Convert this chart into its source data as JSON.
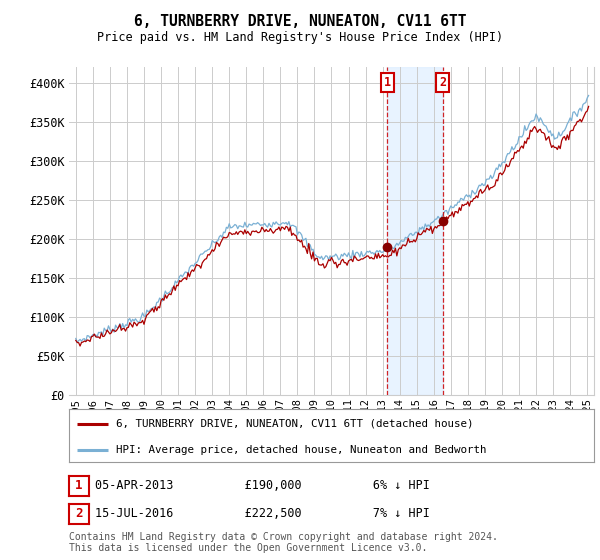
{
  "title": "6, TURNBERRY DRIVE, NUNEATON, CV11 6TT",
  "subtitle": "Price paid vs. HM Land Registry's House Price Index (HPI)",
  "ylim": [
    0,
    420000
  ],
  "yticks": [
    0,
    50000,
    100000,
    150000,
    200000,
    250000,
    300000,
    350000,
    400000
  ],
  "ytick_labels": [
    "£0",
    "£50K",
    "£100K",
    "£150K",
    "£200K",
    "£250K",
    "£300K",
    "£350K",
    "£400K"
  ],
  "line_color_red": "#aa0000",
  "line_color_blue": "#7ab0d4",
  "annotation1": {
    "label": "1",
    "date": "05-APR-2013",
    "price": "£190,000",
    "pct": "6% ↓ HPI"
  },
  "annotation2": {
    "label": "2",
    "date": "15-JUL-2016",
    "price": "£222,500",
    "pct": "7% ↓ HPI"
  },
  "legend_entry1": "6, TURNBERRY DRIVE, NUNEATON, CV11 6TT (detached house)",
  "legend_entry2": "HPI: Average price, detached house, Nuneaton and Bedworth",
  "footer": "Contains HM Land Registry data © Crown copyright and database right 2024.\nThis data is licensed under the Open Government Licence v3.0.",
  "bg_color": "#ffffff",
  "grid_color": "#cccccc",
  "shade_color": "#ddeeff",
  "marker_color": "#880000",
  "t1_year": 2013.263,
  "t2_year": 2016.538,
  "t1_price": 190000,
  "t2_price": 222500,
  "xlim_left": 1994.6,
  "xlim_right": 2025.4
}
